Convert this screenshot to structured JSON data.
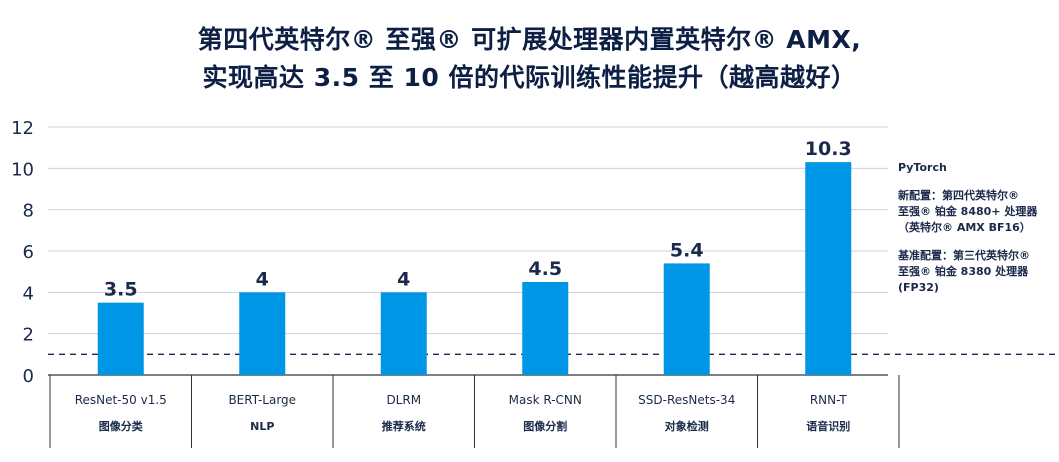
{
  "title_line1": "第四代英特尔® 至强® 可扩展处理器内置英特尔® AMX,",
  "title_line2": "实现高达 3.5 至 10 倍的代际训练性能提升（越高越好）",
  "side_panel": {
    "framework": "PyTorch",
    "new_config": [
      "新配置：第四代英特尔®",
      "至强® 铂金 8480+ 处理器",
      "（英特尔® AMX BF16）"
    ],
    "base_config": [
      "基准配置：第三代英特尔®",
      "至强® 铂金 8380 处理器",
      "(FP32)"
    ]
  },
  "colors": {
    "bar": "#0096e6",
    "grid": "#c8d2e0",
    "axis": "#333333",
    "text": "#1b2a4a",
    "baseline": "#1b2a4a"
  },
  "chart_data": {
    "type": "bar",
    "categories": [
      "ResNet-50 v1.5",
      "BERT-Large",
      "DLRM",
      "Mask R-CNN",
      "SSD-ResNets-34",
      "RNN-T"
    ],
    "subcategories": [
      "图像分类",
      "NLP",
      "推荐系统",
      "图像分割",
      "对象检测",
      "语音识别"
    ],
    "values": [
      3.5,
      4,
      4,
      4.5,
      5.4,
      10.3
    ],
    "value_labels": [
      "3.5",
      "4",
      "4",
      "4.5",
      "5.4",
      "10.3"
    ],
    "yticks": [
      "0",
      "2",
      "4",
      "6",
      "8",
      "10",
      "12"
    ],
    "ylim": [
      0,
      12
    ],
    "reference_line": 1,
    "grid": true
  }
}
